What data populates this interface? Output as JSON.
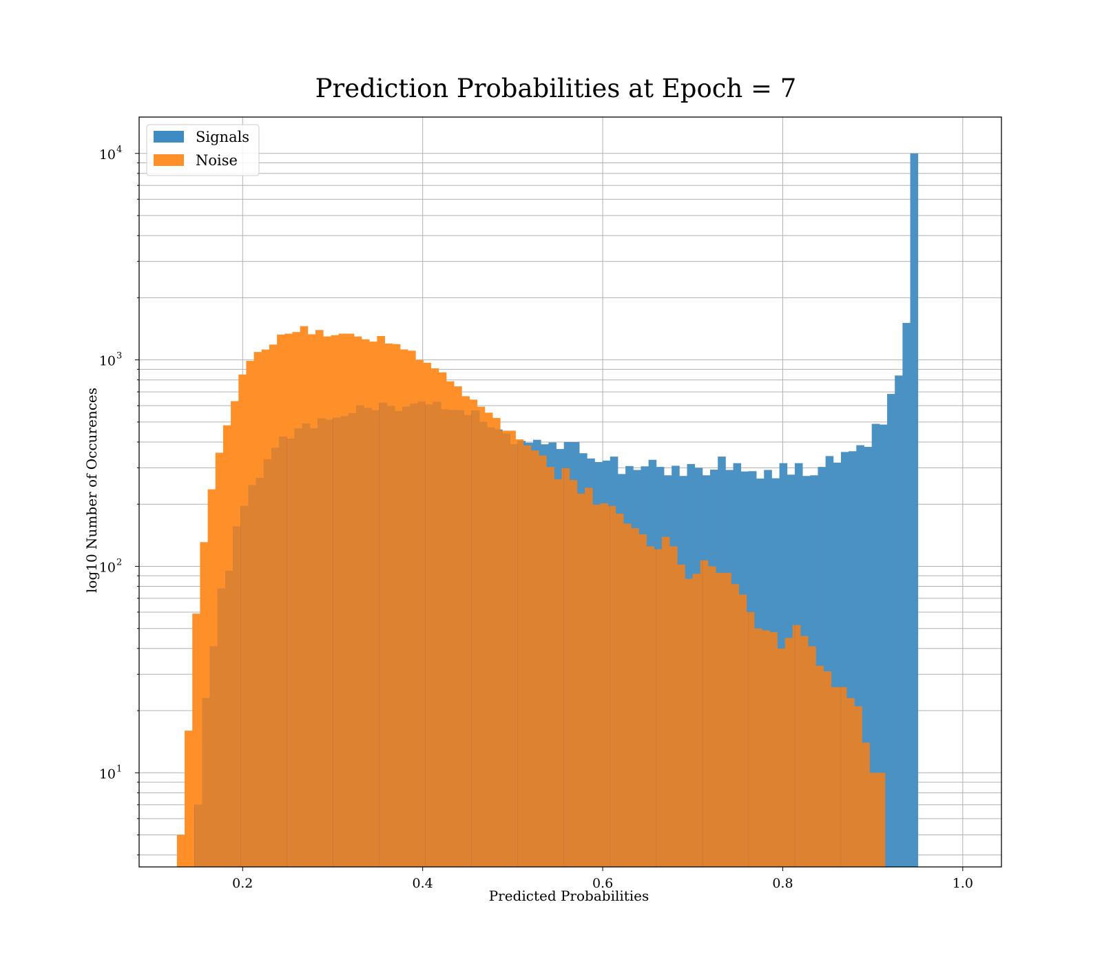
{
  "chart_data": {
    "type": "bar",
    "subtype": "overlaid-histogram",
    "title": "Prediction Probabilities at Epoch = 7",
    "xlabel": "Predicted Probabilities",
    "ylabel": "log10 Number of Occurences",
    "xlim": [
      0.085,
      1.043
    ],
    "ylim": [
      3.5,
      15000
    ],
    "yscale": "log",
    "grid": true,
    "legend_position": "upper-left",
    "x_ticks": [
      {
        "value": 0.2,
        "label": "0.2"
      },
      {
        "value": 0.4,
        "label": "0.4"
      },
      {
        "value": 0.6,
        "label": "0.6"
      },
      {
        "value": 0.8,
        "label": "0.8"
      },
      {
        "value": 1.0,
        "label": "1.0"
      }
    ],
    "y_ticks": [
      {
        "value": 10,
        "base": "10",
        "exp": "1"
      },
      {
        "value": 100,
        "base": "10",
        "exp": "2"
      },
      {
        "value": 1000,
        "base": "10",
        "exp": "3"
      },
      {
        "value": 10000,
        "base": "10",
        "exp": "4"
      }
    ],
    "series": [
      {
        "name": "Signals",
        "color": "#1f77b4",
        "bin_start": 0.1465,
        "bin_width": 0.00855,
        "values": [
          7,
          23,
          41,
          78,
          95,
          156,
          196,
          247,
          268,
          330,
          375,
          425,
          415,
          465,
          492,
          466,
          520,
          513,
          525,
          533,
          551,
          603,
          585,
          570,
          620,
          598,
          565,
          592,
          613,
          627,
          608,
          625,
          576,
          570,
          570,
          540,
          568,
          500,
          470,
          460,
          440,
          390,
          405,
          397,
          410,
          390,
          398,
          370,
          400,
          400,
          353,
          333,
          320,
          325,
          340,
          280,
          306,
          293,
          305,
          328,
          303,
          276,
          307,
          274,
          313,
          300,
          276,
          294,
          340,
          293,
          316,
          288,
          289,
          266,
          293,
          267,
          316,
          278,
          316,
          274,
          276,
          303,
          342,
          318,
          358,
          361,
          386,
          379,
          490,
          486,
          684,
          840,
          1510,
          10000
        ]
      },
      {
        "name": "Noise",
        "color": "#ff7f0e",
        "bin_start": 0.127,
        "bin_width": 0.00855,
        "values": [
          5,
          16,
          59,
          131,
          236,
          355,
          482,
          631,
          850,
          989,
          1092,
          1122,
          1186,
          1326,
          1340,
          1364,
          1457,
          1330,
          1395,
          1299,
          1316,
          1340,
          1339,
          1298,
          1257,
          1226,
          1305,
          1200,
          1192,
          1124,
          1108,
          1000,
          968,
          910,
          870,
          787,
          744,
          667,
          642,
          593,
          555,
          523,
          454,
          454,
          412,
          385,
          364,
          344,
          303,
          264,
          299,
          262,
          225,
          240,
          199,
          202,
          196,
          180,
          161,
          153,
          143,
          125,
          121,
          139,
          125,
          102,
          87,
          92,
          107,
          100,
          93,
          93,
          82,
          73,
          60,
          50,
          49,
          48,
          40,
          45,
          52,
          46,
          41,
          33,
          31,
          26,
          26,
          23,
          21,
          14,
          10,
          10
        ]
      }
    ]
  }
}
